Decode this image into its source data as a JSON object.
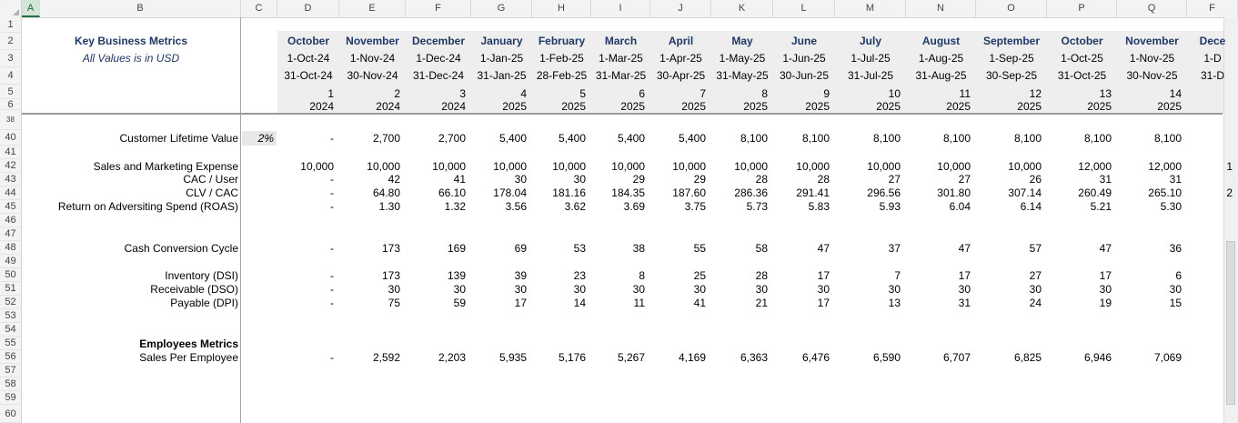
{
  "columns": [
    "A",
    "B",
    "C",
    "D",
    "E",
    "F",
    "G",
    "H",
    "I",
    "J",
    "K",
    "L",
    "M",
    "N",
    "O",
    "P",
    "Q",
    "F"
  ],
  "row_numbers": [
    "1",
    "2",
    "3",
    "4",
    "5",
    "6",
    "38",
    "40",
    "41",
    "42",
    "43",
    "44",
    "45",
    "46",
    "47",
    "48",
    "49",
    "50",
    "51",
    "52",
    "53",
    "54",
    "55",
    "56",
    "57",
    "58",
    "59",
    "60"
  ],
  "header": {
    "title": "Key Business Metrics",
    "subtitle": "All Values is in USD",
    "months": [
      "October",
      "November",
      "December",
      "January",
      "February",
      "March",
      "April",
      "May",
      "June",
      "July",
      "August",
      "September",
      "October",
      "November",
      "Dece"
    ],
    "start_dates": [
      "1-Oct-24",
      "1-Nov-24",
      "1-Dec-24",
      "1-Jan-25",
      "1-Feb-25",
      "1-Mar-25",
      "1-Apr-25",
      "1-May-25",
      "1-Jun-25",
      "1-Jul-25",
      "1-Aug-25",
      "1-Sep-25",
      "1-Oct-25",
      "1-Nov-25",
      "1-D"
    ],
    "end_dates": [
      "31-Oct-24",
      "30-Nov-24",
      "31-Dec-24",
      "31-Jan-25",
      "28-Feb-25",
      "31-Mar-25",
      "30-Apr-25",
      "31-May-25",
      "30-Jun-25",
      "31-Jul-25",
      "31-Aug-25",
      "30-Sep-25",
      "31-Oct-25",
      "30-Nov-25",
      "31-D"
    ],
    "period_numbers": [
      "1",
      "2",
      "3",
      "4",
      "5",
      "6",
      "7",
      "8",
      "9",
      "10",
      "11",
      "12",
      "13",
      "14",
      ""
    ],
    "years": [
      "2024",
      "2024",
      "2024",
      "2025",
      "2025",
      "2025",
      "2025",
      "2025",
      "2025",
      "2025",
      "2025",
      "2025",
      "2025",
      "2025",
      ""
    ]
  },
  "rows": {
    "clv": {
      "label": "Customer Lifetime Value",
      "pct": "2%",
      "values": [
        "-",
        "2,700",
        "2,700",
        "5,400",
        "5,400",
        "5,400",
        "5,400",
        "8,100",
        "8,100",
        "8,100",
        "8,100",
        "8,100",
        "8,100",
        "8,100",
        ""
      ]
    },
    "sme": {
      "label": "Sales and Marketing Expense",
      "values": [
        "10,000",
        "10,000",
        "10,000",
        "10,000",
        "10,000",
        "10,000",
        "10,000",
        "10,000",
        "10,000",
        "10,000",
        "10,000",
        "10,000",
        "12,000",
        "12,000",
        "1"
      ]
    },
    "cac": {
      "label": "CAC / User",
      "values": [
        "-",
        "42",
        "41",
        "30",
        "30",
        "29",
        "29",
        "28",
        "28",
        "27",
        "27",
        "26",
        "31",
        "31",
        ""
      ]
    },
    "clvcac": {
      "label": "CLV / CAC",
      "values": [
        "-",
        "64.80",
        "66.10",
        "178.04",
        "181.16",
        "184.35",
        "187.60",
        "286.36",
        "291.41",
        "296.56",
        "301.80",
        "307.14",
        "260.49",
        "265.10",
        "2"
      ]
    },
    "roas": {
      "label": "Return on Adversiting  Spend (ROAS)",
      "values": [
        "-",
        "1.30",
        "1.32",
        "3.56",
        "3.62",
        "3.69",
        "3.75",
        "5.73",
        "5.83",
        "5.93",
        "6.04",
        "6.14",
        "5.21",
        "5.30",
        ""
      ]
    },
    "ccc": {
      "label": "Cash Conversion Cycle",
      "values": [
        "-",
        "173",
        "169",
        "69",
        "53",
        "38",
        "55",
        "58",
        "47",
        "37",
        "47",
        "57",
        "47",
        "36",
        ""
      ]
    },
    "dsi": {
      "label": "Inventory (DSI)",
      "values": [
        "-",
        "173",
        "139",
        "39",
        "23",
        "8",
        "25",
        "28",
        "17",
        "7",
        "17",
        "27",
        "17",
        "6",
        ""
      ]
    },
    "dso": {
      "label": "Receivable (DSO)",
      "values": [
        "-",
        "30",
        "30",
        "30",
        "30",
        "30",
        "30",
        "30",
        "30",
        "30",
        "30",
        "30",
        "30",
        "30",
        ""
      ]
    },
    "dpi": {
      "label": "Payable (DPI)",
      "values": [
        "-",
        "75",
        "59",
        "17",
        "14",
        "11",
        "41",
        "21",
        "17",
        "13",
        "31",
        "24",
        "19",
        "15",
        ""
      ]
    },
    "emp_title": {
      "label": "Employees Metrics"
    },
    "spe": {
      "label": "Sales Per Employee",
      "values": [
        "-",
        "2,592",
        "2,203",
        "5,935",
        "5,176",
        "5,267",
        "4,169",
        "6,363",
        "6,476",
        "6,590",
        "6,707",
        "6,825",
        "6,946",
        "7,069",
        ""
      ]
    }
  }
}
